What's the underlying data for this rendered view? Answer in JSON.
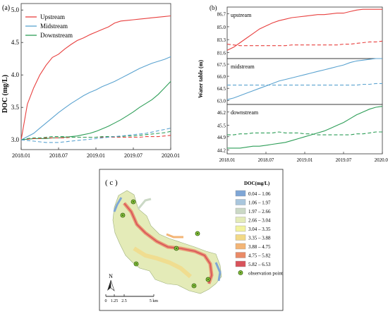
{
  "chart_data": [
    {
      "panel": "(a)",
      "type": "line",
      "ylabel": "DOC (mg/L)",
      "xlabel": "",
      "x_ticks": [
        "2018.01",
        "2018.07",
        "2019.01",
        "2019.07",
        "2020.01"
      ],
      "y_ticks": [
        "3.0",
        "3.5",
        "4.0",
        "4.5",
        "5.0"
      ],
      "ylim": [
        2.85,
        5.1
      ],
      "x": [
        "2018.01",
        "2018.02",
        "2018.03",
        "2018.04",
        "2018.05",
        "2018.06",
        "2018.07",
        "2018.08",
        "2018.09",
        "2018.10",
        "2018.11",
        "2018.12",
        "2019.01",
        "2019.02",
        "2019.03",
        "2019.04",
        "2019.05",
        "2019.06",
        "2019.07",
        "2019.08",
        "2019.09",
        "2019.10",
        "2019.11",
        "2019.12",
        "2020.01"
      ],
      "legend_position": "top-left",
      "grid": false,
      "series": [
        {
          "name": "Upstream",
          "color": "#e8403f",
          "style": "solid",
          "values": [
            3.0,
            3.55,
            3.8,
            4.0,
            4.15,
            4.27,
            4.32,
            4.4,
            4.47,
            4.53,
            4.57,
            4.62,
            4.66,
            4.7,
            4.74,
            4.8,
            4.83,
            4.84,
            4.85,
            4.86,
            4.87,
            4.88,
            4.89,
            4.9,
            4.91
          ]
        },
        {
          "name": "Midstream",
          "color": "#5ba3d0",
          "style": "solid",
          "values": [
            3.0,
            3.05,
            3.1,
            3.18,
            3.26,
            3.34,
            3.42,
            3.49,
            3.56,
            3.62,
            3.68,
            3.73,
            3.77,
            3.82,
            3.86,
            3.9,
            3.95,
            4.0,
            4.05,
            4.1,
            4.14,
            4.18,
            4.21,
            4.24,
            4.28
          ]
        },
        {
          "name": "Downstream",
          "color": "#2e9e58",
          "style": "solid",
          "values": [
            3.0,
            3.01,
            3.02,
            3.02,
            3.02,
            3.03,
            3.03,
            3.04,
            3.05,
            3.06,
            3.08,
            3.1,
            3.13,
            3.17,
            3.21,
            3.26,
            3.31,
            3.37,
            3.43,
            3.5,
            3.56,
            3.62,
            3.7,
            3.8,
            3.9
          ]
        },
        {
          "name": "",
          "color": "#e8403f",
          "style": "dashed",
          "values": [
            3.0,
            3.01,
            3.02,
            3.02,
            3.03,
            3.03,
            3.03,
            3.03,
            3.04,
            3.04,
            3.04,
            3.04,
            3.04,
            3.04,
            3.04,
            3.04,
            3.04,
            3.04,
            3.04,
            3.04,
            3.05,
            3.05,
            3.05,
            3.06,
            3.07
          ]
        },
        {
          "name": "",
          "color": "#2e9e58",
          "style": "dashed",
          "values": [
            3.0,
            3.02,
            3.03,
            3.03,
            3.04,
            3.05,
            3.05,
            3.05,
            3.04,
            3.04,
            3.04,
            3.04,
            3.04,
            3.05,
            3.05,
            3.05,
            3.05,
            3.06,
            3.06,
            3.07,
            3.08,
            3.09,
            3.1,
            3.11,
            3.13
          ]
        },
        {
          "name": "",
          "color": "#5ba3d0",
          "style": "dashed",
          "values": [
            3.0,
            2.99,
            2.98,
            2.97,
            2.96,
            2.96,
            2.96,
            2.97,
            2.98,
            2.99,
            3.0,
            3.01,
            3.02,
            3.03,
            3.04,
            3.05,
            3.06,
            3.07,
            3.08,
            3.09,
            3.1,
            3.12,
            3.14,
            3.16,
            3.18
          ]
        }
      ]
    },
    {
      "panel": "(b)",
      "type": "line",
      "ylabel": "Water table (m)",
      "x_ticks": [
        "2018.01",
        "2018.07",
        "2019.01",
        "2019.07",
        "2020.01"
      ],
      "x": [
        "2018.01",
        "2018.02",
        "2018.03",
        "2018.04",
        "2018.05",
        "2018.06",
        "2018.07",
        "2018.08",
        "2018.09",
        "2018.10",
        "2018.11",
        "2018.12",
        "2019.01",
        "2019.02",
        "2019.03",
        "2019.04",
        "2019.05",
        "2019.06",
        "2019.07",
        "2019.08",
        "2019.09",
        "2019.10",
        "2019.11",
        "2019.12",
        "2020.01"
      ],
      "subplots": [
        {
          "label": "upstream",
          "y_ticks": [
            "81.6",
            "83.3",
            "85.0",
            "86.7"
          ],
          "ylim": [
            80.8,
            87.6
          ],
          "series": [
            {
              "color": "#e8403f",
              "style": "solid",
              "values": [
                81.9,
                82.3,
                82.9,
                83.5,
                84.1,
                84.7,
                85.1,
                85.5,
                85.8,
                86.0,
                86.2,
                86.3,
                86.4,
                86.5,
                86.6,
                86.6,
                86.7,
                86.8,
                86.8,
                87.0,
                87.2,
                87.3,
                87.3,
                87.3,
                87.3
              ]
            },
            {
              "color": "#e8403f",
              "style": "dashed",
              "values": [
                82.7,
                82.6,
                82.5,
                82.5,
                82.5,
                82.5,
                82.5,
                82.5,
                82.5,
                82.5,
                82.6,
                82.6,
                82.6,
                82.6,
                82.6,
                82.6,
                82.6,
                82.6,
                82.7,
                82.7,
                82.8,
                82.9,
                83.0,
                83.0,
                83.1
              ]
            }
          ]
        },
        {
          "label": "midstream",
          "y_ticks": [
            "63.0",
            "64.5",
            "66.0",
            "67.5"
          ],
          "ylim": [
            62.5,
            68.2
          ],
          "series": [
            {
              "color": "#5ba3d0",
              "style": "solid",
              "values": [
                63.1,
                63.3,
                63.6,
                63.9,
                64.2,
                64.5,
                64.8,
                65.1,
                65.4,
                65.6,
                65.8,
                66.0,
                66.2,
                66.4,
                66.6,
                66.8,
                67.0,
                67.2,
                67.4,
                67.7,
                67.9,
                68.0,
                68.1,
                68.2,
                68.2
              ]
            },
            {
              "color": "#5ba3d0",
              "style": "dashed",
              "values": [
                64.9,
                64.9,
                64.9,
                64.9,
                64.9,
                64.9,
                64.9,
                64.9,
                64.9,
                64.9,
                64.9,
                64.9,
                64.9,
                64.9,
                64.9,
                64.9,
                64.9,
                64.9,
                64.9,
                64.9,
                64.9,
                65.0,
                65.0,
                65.1,
                65.1
              ]
            }
          ]
        },
        {
          "label": "downstream",
          "y_ticks": [
            "44.2",
            "44.9",
            "45.5",
            "46.2"
          ],
          "ylim": [
            44.0,
            46.6
          ],
          "series": [
            {
              "color": "#2e9e58",
              "style": "solid",
              "values": [
                44.3,
                44.3,
                44.3,
                44.35,
                44.4,
                44.4,
                44.45,
                44.5,
                44.55,
                44.6,
                44.7,
                44.8,
                44.9,
                45.0,
                45.1,
                45.2,
                45.35,
                45.5,
                45.65,
                45.85,
                46.05,
                46.2,
                46.35,
                46.45,
                46.5
              ]
            },
            {
              "color": "#2e9e58",
              "style": "dashed",
              "values": [
                45.0,
                45.0,
                45.05,
                45.05,
                45.1,
                45.1,
                45.1,
                45.1,
                45.15,
                45.1,
                45.1,
                45.1,
                45.05,
                45.05,
                45.0,
                45.0,
                45.0,
                45.0,
                45.0,
                45.0,
                45.05,
                45.05,
                45.1,
                45.15,
                45.15
              ]
            }
          ]
        }
      ]
    },
    {
      "panel": "( c )",
      "type": "map",
      "legend_title": "DOC(mg/L)",
      "legend": [
        {
          "label": "0.04 – 1.06",
          "color": "#7ea6d6"
        },
        {
          "label": "1.06 – 1.97",
          "color": "#a9c6dd"
        },
        {
          "label": "1.97 – 2.66",
          "color": "#cbd9c6"
        },
        {
          "label": "2.66 – 3.04",
          "color": "#e4ebb8"
        },
        {
          "label": "3.04 – 3.35",
          "color": "#f2f29e"
        },
        {
          "label": "3.35 – 3.88",
          "color": "#f2d986"
        },
        {
          "label": "3.88 – 4.75",
          "color": "#f3b576"
        },
        {
          "label": "4.75 – 5.82",
          "color": "#ea8a66"
        },
        {
          "label": "5.82 – 6.53",
          "color": "#d8535b"
        }
      ],
      "point_label": "observation point",
      "scale_ticks": [
        "0",
        "1.25",
        "2.5",
        "5 km"
      ],
      "north": "N"
    }
  ],
  "panel_labels": {
    "a": "(a)",
    "b": "(b)",
    "c": "( c )"
  },
  "legend_a": [
    "Upstream",
    "Midstream",
    "Downstream"
  ]
}
